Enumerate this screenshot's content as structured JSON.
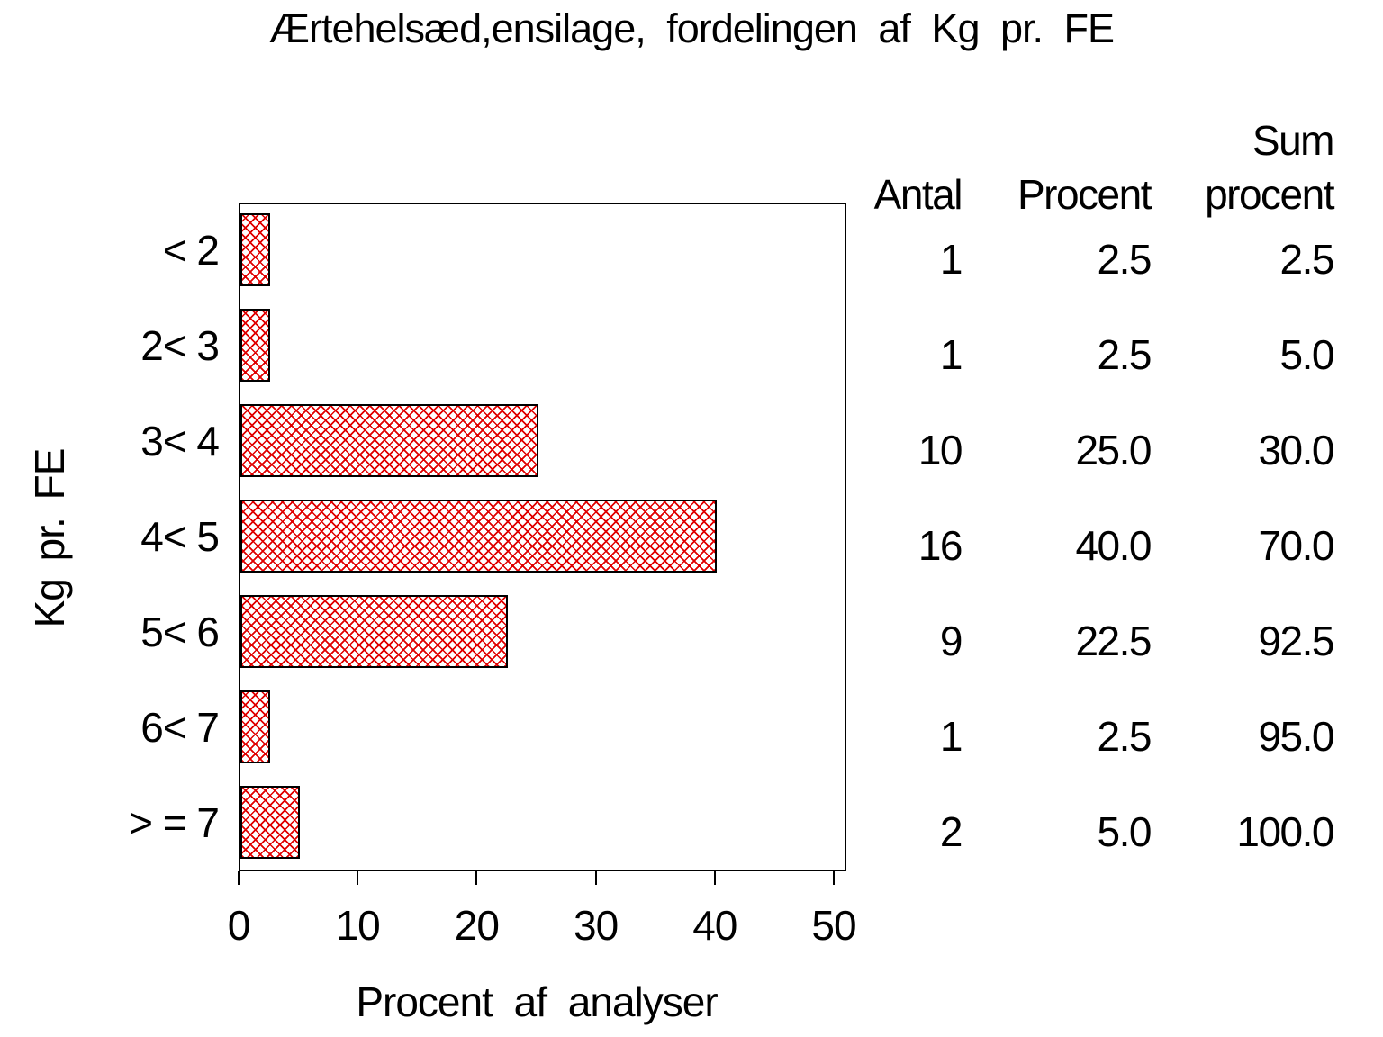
{
  "title": "Ærtehelsæd,ensilage, fordelingen af Kg pr. FE",
  "chart_data": {
    "type": "bar",
    "orientation": "horizontal",
    "title": "Ærtehelsæd,ensilage, fordelingen af Kg pr. FE",
    "categories": [
      "< 2",
      "2< 3",
      "3< 4",
      "4< 5",
      "5< 6",
      "6< 7",
      "> = 7"
    ],
    "values": [
      2.5,
      2.5,
      25.0,
      40.0,
      22.5,
      2.5,
      5.0
    ],
    "xlabel": "Procent af analyser",
    "ylabel": "Kg pr. FE",
    "xlim": [
      0,
      50
    ],
    "xticks": [
      "0",
      "10",
      "20",
      "30",
      "40",
      "50"
    ],
    "grid": false,
    "bar_pattern": "red-crosshatch",
    "bar_color": "#e00000",
    "bar_border_color": "#000000",
    "frame_color": "#000000",
    "side_table": {
      "col_headers": [
        {
          "lines": [
            "Antal"
          ]
        },
        {
          "lines": [
            "Procent"
          ]
        },
        {
          "lines": [
            "Sum",
            "procent"
          ]
        }
      ],
      "rows": [
        {
          "antal": "1",
          "procent": "2.5",
          "sum_procent": "2.5"
        },
        {
          "antal": "1",
          "procent": "2.5",
          "sum_procent": "5.0"
        },
        {
          "antal": "10",
          "procent": "25.0",
          "sum_procent": "30.0"
        },
        {
          "antal": "16",
          "procent": "40.0",
          "sum_procent": "70.0"
        },
        {
          "antal": "9",
          "procent": "22.5",
          "sum_procent": "92.5"
        },
        {
          "antal": "1",
          "procent": "2.5",
          "sum_procent": "95.0"
        },
        {
          "antal": "2",
          "procent": "5.0",
          "sum_procent": "100.0"
        }
      ]
    }
  }
}
